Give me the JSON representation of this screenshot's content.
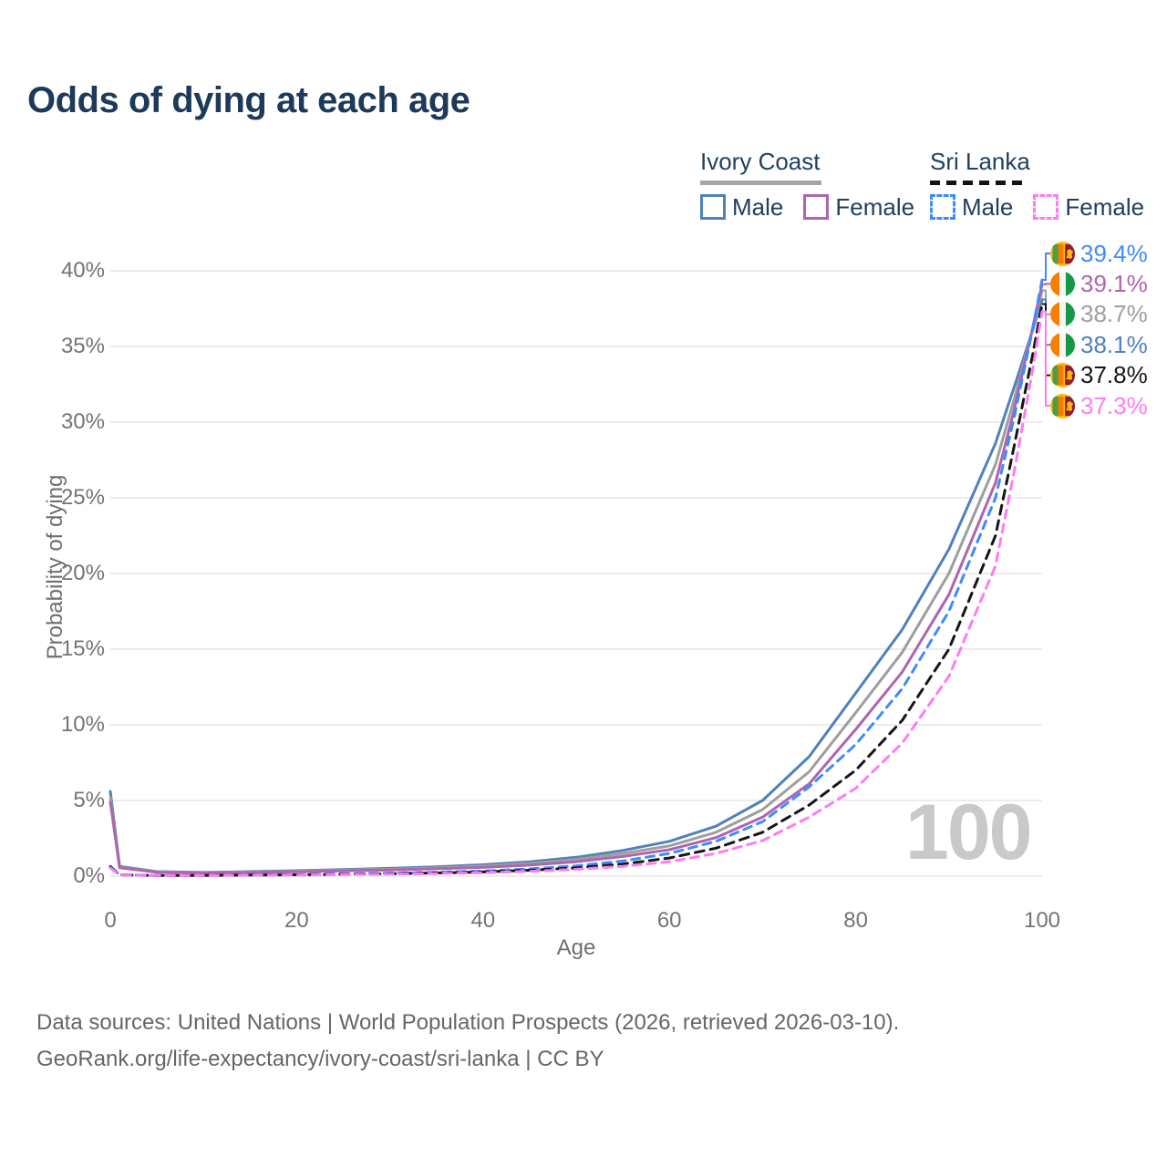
{
  "title": "Odds of dying at each age",
  "legend": {
    "groups": [
      {
        "name": "Ivory Coast",
        "line_style": "solid",
        "line_color": "#a5a5a5",
        "items": [
          {
            "label": "Male",
            "color": "#4f81bd",
            "dashed": false
          },
          {
            "label": "Female",
            "color": "#b064ae",
            "dashed": false
          }
        ]
      },
      {
        "name": "Sri Lanka",
        "line_style": "dashed",
        "line_color": "#141414",
        "items": [
          {
            "label": "Male",
            "color": "#3d8bfd",
            "dashed": true
          },
          {
            "label": "Female",
            "color": "#ff7bf2",
            "dashed": true
          }
        ]
      }
    ]
  },
  "chart_data": {
    "type": "line",
    "title": "Odds of dying at each age",
    "xlabel": "Age",
    "ylabel": "Probability of dying",
    "xlim": [
      0,
      100
    ],
    "ylim": [
      0,
      40
    ],
    "x_ticks": [
      0,
      20,
      40,
      60,
      80,
      100
    ],
    "y_ticks": [
      0,
      5,
      10,
      15,
      20,
      25,
      30,
      35,
      40
    ],
    "y_tick_suffix": "%",
    "grid": "horizontal",
    "legend_position": "top-right",
    "x": [
      0,
      1,
      5,
      10,
      15,
      20,
      25,
      30,
      35,
      40,
      45,
      50,
      55,
      60,
      65,
      70,
      75,
      80,
      85,
      90,
      95,
      97,
      99,
      100
    ],
    "series": [
      {
        "name": "Ivory Coast Male",
        "country": "Ivory Coast",
        "sex": "male",
        "color": "#4f81bd",
        "dash": null,
        "width": 3,
        "values": [
          5.6,
          0.65,
          0.3,
          0.25,
          0.3,
          0.36,
          0.44,
          0.52,
          0.62,
          0.75,
          0.95,
          1.25,
          1.7,
          2.3,
          3.3,
          5.0,
          7.9,
          12.1,
          16.3,
          21.6,
          28.6,
          32.3,
          36.1,
          38.1
        ]
      },
      {
        "name": "Ivory Coast Total",
        "country": "Ivory Coast",
        "sex": "both",
        "color": "#9e9e9e",
        "dash": null,
        "width": 3,
        "values": [
          5.2,
          0.6,
          0.28,
          0.23,
          0.27,
          0.32,
          0.39,
          0.46,
          0.55,
          0.66,
          0.84,
          1.1,
          1.5,
          2.0,
          2.9,
          4.4,
          6.9,
          10.8,
          14.8,
          20.0,
          27.2,
          31.5,
          36.2,
          38.7
        ]
      },
      {
        "name": "Ivory Coast Female",
        "country": "Ivory Coast",
        "sex": "female",
        "color": "#b064ae",
        "dash": null,
        "width": 3,
        "values": [
          4.9,
          0.56,
          0.26,
          0.21,
          0.25,
          0.29,
          0.35,
          0.41,
          0.49,
          0.58,
          0.73,
          0.95,
          1.3,
          1.75,
          2.55,
          3.9,
          6.1,
          9.7,
          13.5,
          18.6,
          26.0,
          30.8,
          36.3,
          39.1
        ]
      },
      {
        "name": "Sri Lanka Male",
        "country": "Sri Lanka",
        "sex": "male",
        "color": "#3d8bfd",
        "dash": "9 7",
        "width": 3,
        "values": [
          0.65,
          0.09,
          0.05,
          0.06,
          0.08,
          0.11,
          0.15,
          0.2,
          0.26,
          0.34,
          0.48,
          0.68,
          1.0,
          1.5,
          2.3,
          3.6,
          5.9,
          8.7,
          12.4,
          17.5,
          25.0,
          30.3,
          36.2,
          39.4
        ]
      },
      {
        "name": "Sri Lanka Total",
        "country": "Sri Lanka",
        "sex": "both",
        "color": "#161616",
        "dash": "10 7",
        "width": 3,
        "values": [
          0.6,
          0.08,
          0.04,
          0.05,
          0.07,
          0.09,
          0.12,
          0.16,
          0.21,
          0.28,
          0.39,
          0.55,
          0.8,
          1.2,
          1.85,
          2.9,
          4.7,
          7.0,
          10.3,
          15.0,
          22.5,
          28.4,
          34.5,
          37.8
        ]
      },
      {
        "name": "Sri Lanka Female",
        "country": "Sri Lanka",
        "sex": "female",
        "color": "#ff7bf2",
        "dash": "9 7",
        "width": 3,
        "values": [
          0.55,
          0.07,
          0.04,
          0.04,
          0.06,
          0.08,
          0.1,
          0.13,
          0.17,
          0.23,
          0.32,
          0.45,
          0.65,
          0.95,
          1.5,
          2.35,
          3.9,
          5.8,
          8.8,
          13.2,
          20.5,
          26.7,
          33.5,
          37.3
        ]
      }
    ]
  },
  "end_labels": [
    {
      "flag": "lk",
      "country": "Sri Lanka",
      "value": "39.4%",
      "color": "#3d8bfd",
      "series_index": 3
    },
    {
      "flag": "ci",
      "country": "Ivory Coast",
      "value": "39.1%",
      "color": "#b064ae",
      "series_index": 2
    },
    {
      "flag": "ci",
      "country": "Ivory Coast",
      "value": "38.7%",
      "color": "#9e9e9e",
      "series_index": 1
    },
    {
      "flag": "ci",
      "country": "Ivory Coast",
      "value": "38.1%",
      "color": "#4f81bd",
      "series_index": 0
    },
    {
      "flag": "lk",
      "country": "Sri Lanka",
      "value": "37.8%",
      "color": "#161616",
      "series_index": 4
    },
    {
      "flag": "lk",
      "country": "Sri Lanka",
      "value": "37.3%",
      "color": "#ff7bf2",
      "series_index": 5
    }
  ],
  "watermark": "100",
  "footer": {
    "line1": "Data sources: United Nations | World Population Prospects (2026, retrieved 2026-03-10).",
    "line2": "GeoRank.org/life-expectancy/ivory-coast/sri-lanka | CC BY"
  }
}
